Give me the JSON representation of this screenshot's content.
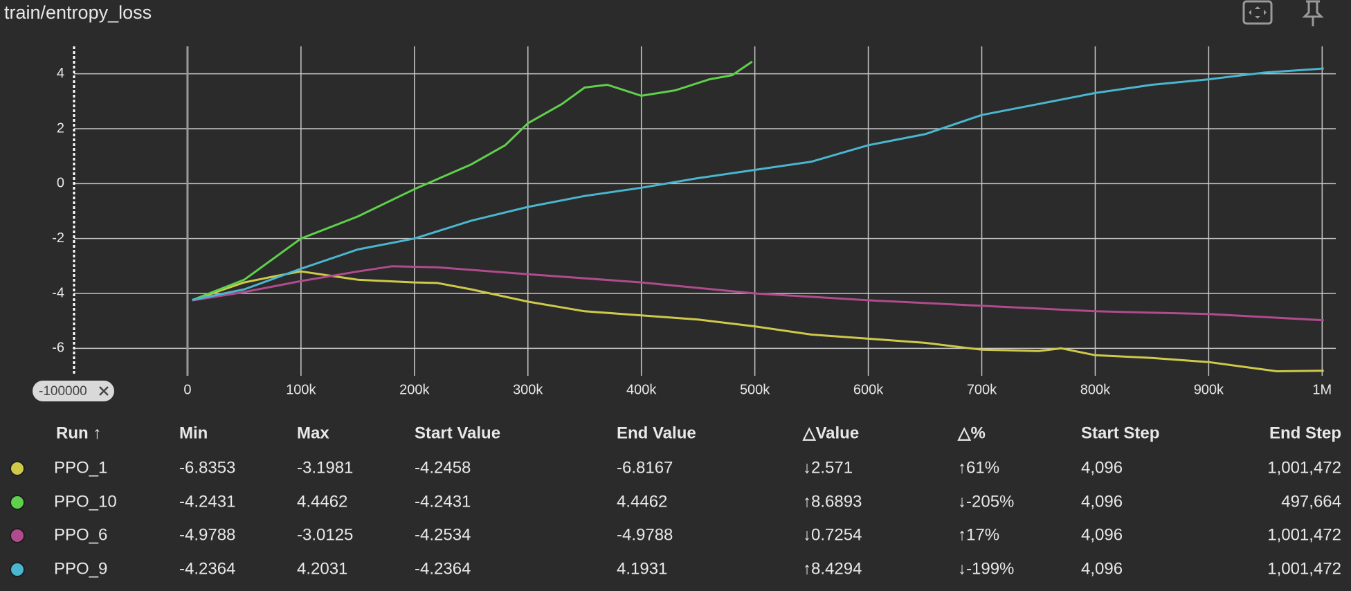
{
  "title": "train/entropy_loss",
  "range_filter": "-100000",
  "chart_data": {
    "type": "line",
    "xlim": [
      -100000,
      1012000
    ],
    "ylim": [
      -7,
      5
    ],
    "xticks": [
      0,
      {
        "value": 100000,
        "label": "100k"
      },
      {
        "value": 200000,
        "label": "200k"
      },
      {
        "value": 300000,
        "label": "300k"
      },
      {
        "value": 400000,
        "label": "400k"
      },
      {
        "value": 500000,
        "label": "500k"
      },
      {
        "value": 600000,
        "label": "600k"
      },
      {
        "value": 700000,
        "label": "700k"
      },
      {
        "value": 800000,
        "label": "800k"
      },
      {
        "value": 900000,
        "label": "900k"
      },
      {
        "value": 1000000,
        "label": "1M"
      }
    ],
    "yticks": [
      -6,
      -4,
      -2,
      0,
      2,
      4
    ],
    "grid": true,
    "series": [
      {
        "name": "PPO_1",
        "color": "#cfc94a",
        "x": [
          4096,
          50000,
          80000,
          100000,
          150000,
          200000,
          220000,
          250000,
          300000,
          350000,
          400000,
          450000,
          500000,
          550000,
          600000,
          650000,
          700000,
          750000,
          770000,
          800000,
          850000,
          900000,
          960000,
          1001472
        ],
        "values": [
          -4.2458,
          -3.6,
          -3.35,
          -3.1981,
          -3.5,
          -3.6,
          -3.62,
          -3.85,
          -4.3,
          -4.65,
          -4.8,
          -4.95,
          -5.2,
          -5.5,
          -5.65,
          -5.8,
          -6.05,
          -6.1,
          -6.0,
          -6.25,
          -6.35,
          -6.5,
          -6.8353,
          -6.8167
        ]
      },
      {
        "name": "PPO_10",
        "color": "#5ed04b",
        "x": [
          4096,
          50000,
          100000,
          150000,
          200000,
          250000,
          280000,
          300000,
          330000,
          350000,
          370000,
          400000,
          430000,
          460000,
          480000,
          497664
        ],
        "values": [
          -4.2431,
          -3.5,
          -2.0,
          -1.2,
          -0.2,
          0.7,
          1.4,
          2.2,
          2.9,
          3.5,
          3.6,
          3.2,
          3.4,
          3.8,
          3.95,
          4.4462
        ]
      },
      {
        "name": "PPO_6",
        "color": "#b04b8e",
        "x": [
          4096,
          50000,
          100000,
          150000,
          180000,
          220000,
          300000,
          400000,
          500000,
          600000,
          700000,
          800000,
          900000,
          1001472
        ],
        "values": [
          -4.2534,
          -3.95,
          -3.55,
          -3.2,
          -3.0125,
          -3.05,
          -3.3,
          -3.6,
          -4.0,
          -4.25,
          -4.45,
          -4.65,
          -4.75,
          -4.9788
        ]
      },
      {
        "name": "PPO_9",
        "color": "#4ab6cf",
        "x": [
          4096,
          50000,
          100000,
          150000,
          200000,
          250000,
          300000,
          350000,
          400000,
          450000,
          500000,
          550000,
          600000,
          650000,
          700000,
          750000,
          800000,
          850000,
          900000,
          950000,
          1001472
        ],
        "values": [
          -4.2364,
          -3.85,
          -3.1,
          -2.4,
          -2.0,
          -1.35,
          -0.85,
          -0.45,
          -0.15,
          0.2,
          0.5,
          0.8,
          1.4,
          1.8,
          2.5,
          2.9,
          3.3,
          3.6,
          3.8,
          4.05,
          4.1931
        ]
      }
    ]
  },
  "table": {
    "columns": [
      "Run ↑",
      "Min",
      "Max",
      "Start Value",
      "End Value",
      "△Value",
      "△%",
      "Start Step",
      "End Step"
    ],
    "rows": [
      [
        "PPO_1",
        "-6.8353",
        "-3.1981",
        "-4.2458",
        "-6.8167",
        "↓2.571",
        "↑61%",
        "4,096",
        "1,001,472"
      ],
      [
        "PPO_10",
        "-4.2431",
        "4.4462",
        "-4.2431",
        "4.4462",
        "↑8.6893",
        "↓-205%",
        "4,096",
        "497,664"
      ],
      [
        "PPO_6",
        "-4.9788",
        "-3.0125",
        "-4.2534",
        "-4.9788",
        "↓0.7254",
        "↑17%",
        "4,096",
        "1,001,472"
      ],
      [
        "PPO_9",
        "-4.2364",
        "4.2031",
        "-4.2364",
        "4.1931",
        "↑8.4294",
        "↓-199%",
        "4,096",
        "1,001,472"
      ]
    ]
  }
}
